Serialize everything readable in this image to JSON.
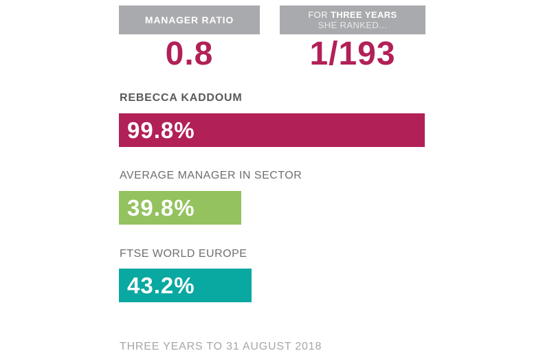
{
  "colors": {
    "accent": "#b22058",
    "box_gray": "#a9aaad",
    "green": "#94c25f",
    "teal": "#09a8a1"
  },
  "header": {
    "left_box": {
      "title": "MANAGER RATIO",
      "value": "0.8"
    },
    "right_box": {
      "title_line1_regular": "FOR",
      "title_line1_bold": "THREE YEARS",
      "title_line2": "SHE RANKED...",
      "value": "1/193"
    }
  },
  "chart_data": {
    "type": "bar",
    "orientation": "horizontal",
    "xlim": [
      0,
      100
    ],
    "unit": "%",
    "categories": [
      "REBECCA KADDOUM",
      "AVERAGE MANAGER IN SECTOR",
      "FTSE WORLD EUROPE"
    ],
    "values": [
      99.8,
      39.8,
      43.2
    ],
    "value_labels": [
      "99.8%",
      "39.8%",
      "43.2%"
    ],
    "bar_colors": [
      "#b22058",
      "#94c25f",
      "#09a8a1"
    ],
    "footnote": "THREE YEARS TO 31 AUGUST 2018"
  }
}
